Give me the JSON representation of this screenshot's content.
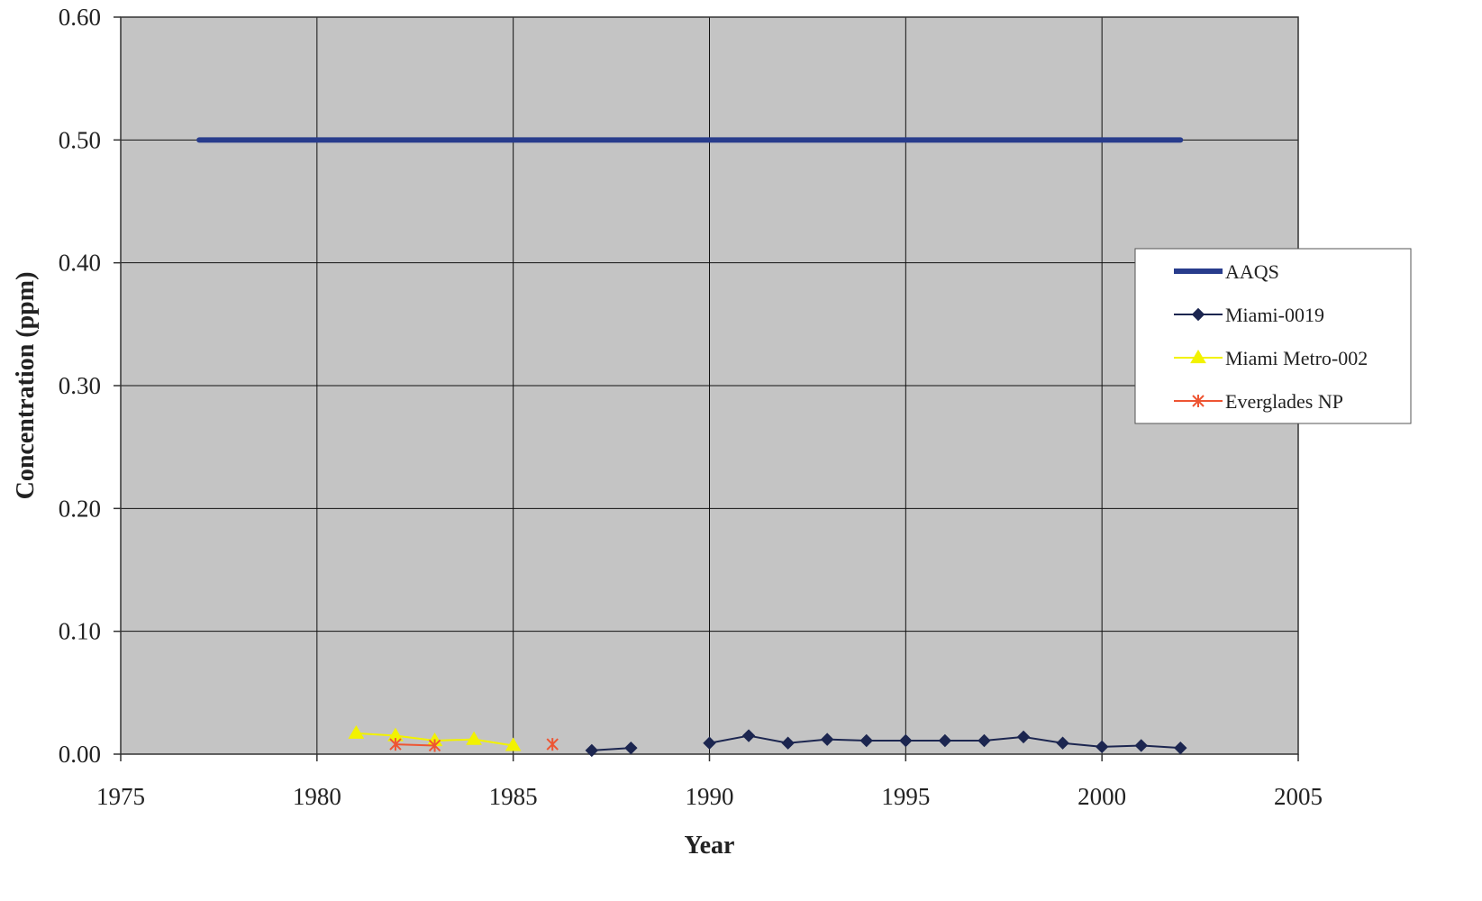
{
  "chart_data": {
    "type": "line",
    "title": "",
    "xlabel": "Year",
    "ylabel": "Concentration (ppm)",
    "xlim": [
      1975,
      2005
    ],
    "ylim": [
      0,
      0.6
    ],
    "x_ticks": [
      1975,
      1980,
      1985,
      1990,
      1995,
      2000,
      2005
    ],
    "y_ticks": [
      0.0,
      0.1,
      0.2,
      0.3,
      0.4,
      0.5,
      0.6
    ],
    "x_tick_labels": [
      "1975",
      "1980",
      "1985",
      "1990",
      "1995",
      "2000",
      "2005"
    ],
    "y_tick_labels": [
      "0.00",
      "0.10",
      "0.20",
      "0.30",
      "0.40",
      "0.50",
      "0.60"
    ],
    "grid": true,
    "plot_background": "#c4c4c4",
    "legend_position": "right",
    "series": [
      {
        "name": "AAQS",
        "color": "#283c8c",
        "marker": "none",
        "segments": [
          [
            [
              1977,
              0.5
            ],
            [
              2002,
              0.5
            ]
          ]
        ]
      },
      {
        "name": "Miami-0019",
        "color": "#1c2650",
        "marker": "diamond",
        "segments": [
          [
            [
              1987,
              0.003
            ],
            [
              1988,
              0.005
            ]
          ],
          [
            [
              1990,
              0.009
            ],
            [
              1991,
              0.015
            ],
            [
              1992,
              0.009
            ],
            [
              1993,
              0.012
            ],
            [
              1994,
              0.011
            ],
            [
              1995,
              0.011
            ],
            [
              1996,
              0.011
            ],
            [
              1997,
              0.011
            ],
            [
              1998,
              0.014
            ],
            [
              1999,
              0.009
            ],
            [
              2000,
              0.006
            ],
            [
              2001,
              0.007
            ],
            [
              2002,
              0.005
            ]
          ]
        ]
      },
      {
        "name": "Miami Metro-002",
        "color": "#f2f200",
        "marker": "triangle",
        "segments": [
          [
            [
              1981,
              0.017
            ],
            [
              1982,
              0.015
            ],
            [
              1983,
              0.011
            ],
            [
              1984,
              0.012
            ],
            [
              1985,
              0.007
            ]
          ]
        ]
      },
      {
        "name": "Everglades NP",
        "color": "#ee5533",
        "marker": "x",
        "segments": [
          [
            [
              1982,
              0.008
            ],
            [
              1983,
              0.007
            ]
          ],
          [
            [
              1986,
              0.008
            ]
          ]
        ]
      }
    ]
  }
}
